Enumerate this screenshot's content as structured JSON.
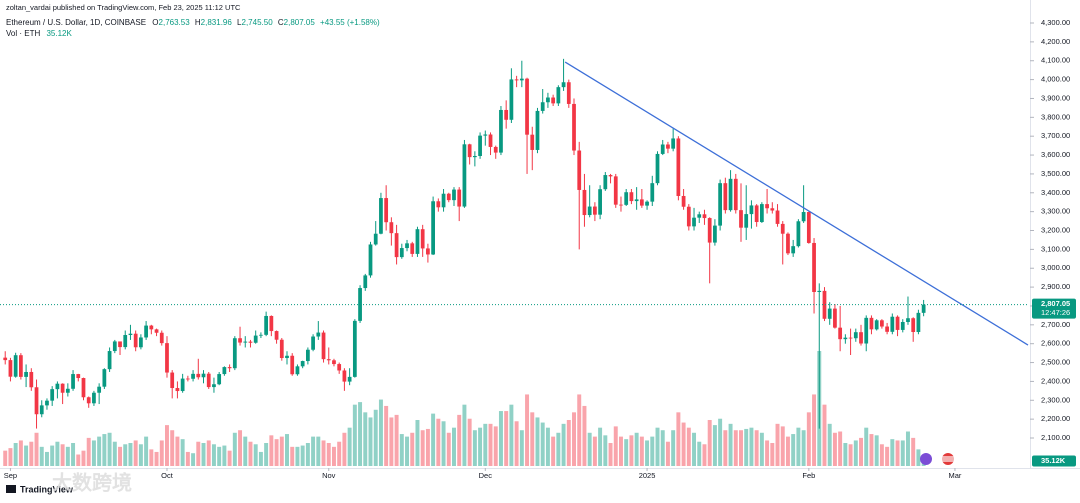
{
  "chart_data": {
    "type": "candlestick",
    "publisher": "zoltan_vardai published on TradingView.com, Feb 23, 2025 11:12 UTC",
    "title": "Ethereum / U.S. Dollar, 1D, COINBASE",
    "ohlc_legend": [
      {
        "key": "O",
        "text": "2,763.53"
      },
      {
        "key": "H",
        "text": "2,831.96"
      },
      {
        "key": "L",
        "text": "2,745.50"
      },
      {
        "key": "C",
        "text": "2,807.05"
      }
    ],
    "change": "+43.55 (+1.58%)",
    "volume_legend": "Vol · ETH",
    "volume_last_label": "35.12K",
    "last_price": {
      "value": 2807.05,
      "label": "2,807.05"
    },
    "countdown": "12:47:26",
    "logo": "TradingView",
    "watermark": "大数跨境",
    "up_color": "#089981",
    "down_color": "#f23645",
    "grid": false,
    "xlim": [
      -1,
      196
    ],
    "ylim": [
      1941,
      4422
    ],
    "xticks": [
      {
        "value": 1,
        "label": "Sep"
      },
      {
        "value": 31,
        "label": "Oct"
      },
      {
        "value": 62,
        "label": "Nov"
      },
      {
        "value": 92,
        "label": "Dec"
      },
      {
        "value": 123,
        "label": "2025"
      },
      {
        "value": 154,
        "label": "Feb"
      },
      {
        "value": 182,
        "label": "Mar"
      }
    ],
    "yticks": [
      {
        "value": 2100,
        "label": "2,100.00"
      },
      {
        "value": 2200,
        "label": "2,200.00"
      },
      {
        "value": 2300,
        "label": "2,300.00"
      },
      {
        "value": 2400,
        "label": "2,400.00"
      },
      {
        "value": 2500,
        "label": "2,500.00"
      },
      {
        "value": 2600,
        "label": "2,600.00"
      },
      {
        "value": 2700,
        "label": "2,700.00"
      },
      {
        "value": 2800,
        "label": "2,800.00"
      },
      {
        "value": 2900,
        "label": "2,900.00"
      },
      {
        "value": 3000,
        "label": "3,000.00"
      },
      {
        "value": 3100,
        "label": "3,100.00"
      },
      {
        "value": 3200,
        "label": "3,200.00"
      },
      {
        "value": 3300,
        "label": "3,300.00"
      },
      {
        "value": 3400,
        "label": "3,400.00"
      },
      {
        "value": 3500,
        "label": "3,500.00"
      },
      {
        "value": 3600,
        "label": "3,600.00"
      },
      {
        "value": 3700,
        "label": "3,700.00"
      },
      {
        "value": 3800,
        "label": "3,800.00"
      },
      {
        "value": 3900,
        "label": "3,900.00"
      },
      {
        "value": 4000,
        "label": "4,000.00"
      },
      {
        "value": 4100,
        "label": "4,100.00"
      },
      {
        "value": 4200,
        "label": "4,200.00"
      },
      {
        "value": 4300,
        "label": "4,300.00"
      }
    ],
    "trendline": {
      "x": [
        107.3,
        196
      ],
      "y": [
        4093,
        2593
      ],
      "color": "#3d6fd8"
    },
    "open": [
      2526,
      2513,
      2425,
      2539,
      2424,
      2450,
      2369,
      2226,
      2273,
      2298,
      2359,
      2388,
      2340,
      2361,
      2439,
      2418,
      2316,
      2284,
      2340,
      2372,
      2465,
      2561,
      2612,
      2582,
      2646,
      2653,
      2581,
      2633,
      2696,
      2676,
      2658,
      2603,
      2447,
      2365,
      2349,
      2415,
      2414,
      2440,
      2422,
      2441,
      2370,
      2385,
      2439,
      2476,
      2470,
      2629,
      2606,
      2611,
      2605,
      2643,
      2647,
      2747,
      2667,
      2621,
      2524,
      2536,
      2438,
      2480,
      2508,
      2568,
      2638,
      2659,
      2518,
      2512,
      2492,
      2458,
      2399,
      2424,
      2721,
      2895,
      2962,
      3126,
      3183,
      3372,
      3244,
      3186,
      3059,
      3107,
      3132,
      3076,
      3207,
      3105,
      3073,
      3355,
      3323,
      3395,
      3361,
      3417,
      3327,
      3657,
      3589,
      3595,
      3703,
      3709,
      3643,
      3613,
      3839,
      3787,
      4001,
      3996,
      4005,
      3708,
      3627,
      3834,
      3880,
      3905,
      3874,
      3960,
      3986,
      3871,
      3624,
      3415,
      3282,
      3327,
      3284,
      3419,
      3494,
      3487,
      3337,
      3336,
      3403,
      3356,
      3365,
      3332,
      3353,
      3451,
      3606,
      3656,
      3634,
      3688,
      3383,
      3326,
      3222,
      3268,
      3286,
      3266,
      3136,
      3226,
      3451,
      3308,
      3474,
      3308,
      3215,
      3287,
      3333,
      3245,
      3340,
      3318,
      3306,
      3235,
      3183,
      3079,
      3117,
      3249,
      3298,
      3134,
      2874,
      2880,
      2732,
      2786,
      2685,
      2624,
      2632,
      2629,
      2661,
      2601,
      2737,
      2676,
      2724,
      2691,
      2663,
      2743,
      2673,
      2715,
      2735,
      2662,
      2763.53
    ],
    "high": [
      2560,
      2525,
      2552,
      2550,
      2490,
      2470,
      2410,
      2300,
      2310,
      2375,
      2400,
      2390,
      2390,
      2460,
      2440,
      2420,
      2320,
      2350,
      2390,
      2470,
      2580,
      2620,
      2610,
      2670,
      2700,
      2670,
      2650,
      2720,
      2700,
      2680,
      2670,
      2640,
      2460,
      2400,
      2440,
      2430,
      2460,
      2520,
      2460,
      2450,
      2420,
      2450,
      2480,
      2490,
      2640,
      2690,
      2640,
      2620,
      2670,
      2660,
      2770,
      2750,
      2670,
      2630,
      2560,
      2550,
      2490,
      2510,
      2580,
      2650,
      2720,
      2670,
      2580,
      2520,
      2500,
      2470,
      2470,
      2730,
      2910,
      2970,
      3140,
      3250,
      3400,
      3440,
      3270,
      3230,
      3130,
      3150,
      3140,
      3220,
      3230,
      3130,
      3380,
      3370,
      3420,
      3400,
      3430,
      3430,
      3680,
      3660,
      3620,
      3720,
      3730,
      3720,
      3650,
      3860,
      3890,
      4060,
      4020,
      4100,
      4010,
      3750,
      3850,
      3950,
      3930,
      3920,
      3970,
      4110,
      4000,
      3900,
      3670,
      3500,
      3440,
      3350,
      3440,
      3510,
      3500,
      3500,
      3380,
      3420,
      3420,
      3430,
      3420,
      3360,
      3490,
      3620,
      3680,
      3670,
      3740,
      3700,
      3420,
      3340,
      3320,
      3300,
      3310,
      3270,
      3260,
      3470,
      3480,
      3520,
      3500,
      3450,
      3440,
      3360,
      3340,
      3350,
      3420,
      3350,
      3340,
      3250,
      3190,
      3150,
      3260,
      3440,
      3300,
      3160,
      2920,
      2900,
      2820,
      2810,
      2800,
      2650,
      2680,
      2680,
      2700,
      2750,
      2750,
      2730,
      2730,
      2710,
      2760,
      2750,
      2730,
      2850,
      2740,
      2780,
      2831.96
    ],
    "low": [
      2490,
      2400,
      2420,
      2410,
      2370,
      2350,
      2150,
      2210,
      2250,
      2270,
      2310,
      2280,
      2320,
      2350,
      2400,
      2300,
      2260,
      2270,
      2280,
      2360,
      2450,
      2550,
      2540,
      2570,
      2620,
      2560,
      2570,
      2620,
      2650,
      2640,
      2590,
      2420,
      2310,
      2310,
      2340,
      2400,
      2400,
      2410,
      2390,
      2360,
      2340,
      2380,
      2430,
      2450,
      2460,
      2590,
      2580,
      2580,
      2600,
      2630,
      2640,
      2640,
      2600,
      2510,
      2490,
      2430,
      2430,
      2470,
      2490,
      2560,
      2620,
      2500,
      2490,
      2480,
      2440,
      2350,
      2380,
      2420,
      2710,
      2880,
      2950,
      3120,
      3180,
      3200,
      3120,
      3020,
      3050,
      3090,
      3060,
      3060,
      3060,
      3030,
      3070,
      3300,
      3300,
      3350,
      3330,
      3250,
      3320,
      3550,
      3540,
      3580,
      3650,
      3600,
      3580,
      3600,
      3740,
      3770,
      3960,
      3960,
      3500,
      3520,
      3610,
      3820,
      3850,
      3860,
      3860,
      3940,
      3850,
      3600,
      3100,
      3220,
      3270,
      3250,
      3260,
      3410,
      3450,
      3320,
      3300,
      3330,
      3340,
      3310,
      3320,
      3310,
      3330,
      3440,
      3600,
      3610,
      3620,
      3360,
      3310,
      3200,
      3200,
      3240,
      3230,
      2920,
      3120,
      3200,
      3290,
      3300,
      3290,
      3140,
      3150,
      3210,
      3220,
      3240,
      3290,
      3290,
      3220,
      3020,
      3070,
      3060,
      3110,
      3240,
      3130,
      2760,
      2150,
      2720,
      2700,
      2680,
      2560,
      2600,
      2540,
      2610,
      2590,
      2560,
      2650,
      2670,
      2680,
      2650,
      2650,
      2640,
      2660,
      2700,
      2610,
      2650,
      2745.5
    ],
    "close": [
      2513,
      2425,
      2539,
      2424,
      2450,
      2369,
      2226,
      2273,
      2298,
      2359,
      2388,
      2340,
      2361,
      2439,
      2418,
      2316,
      2284,
      2340,
      2372,
      2465,
      2561,
      2612,
      2582,
      2646,
      2653,
      2581,
      2633,
      2696,
      2676,
      2658,
      2603,
      2447,
      2365,
      2349,
      2415,
      2414,
      2440,
      2422,
      2441,
      2370,
      2385,
      2439,
      2476,
      2470,
      2629,
      2606,
      2611,
      2605,
      2643,
      2647,
      2747,
      2667,
      2621,
      2524,
      2536,
      2438,
      2480,
      2508,
      2568,
      2638,
      2659,
      2518,
      2512,
      2492,
      2458,
      2399,
      2424,
      2721,
      2895,
      2962,
      3126,
      3183,
      3372,
      3244,
      3186,
      3059,
      3107,
      3132,
      3076,
      3207,
      3105,
      3073,
      3355,
      3323,
      3395,
      3361,
      3417,
      3327,
      3657,
      3589,
      3595,
      3703,
      3709,
      3643,
      3613,
      3839,
      3787,
      4001,
      3996,
      4005,
      3708,
      3627,
      3834,
      3880,
      3905,
      3874,
      3960,
      3986,
      3871,
      3624,
      3415,
      3282,
      3327,
      3284,
      3419,
      3494,
      3487,
      3337,
      3336,
      3403,
      3356,
      3365,
      3332,
      3353,
      3451,
      3606,
      3656,
      3634,
      3688,
      3383,
      3326,
      3222,
      3268,
      3286,
      3266,
      3136,
      3226,
      3451,
      3308,
      3474,
      3308,
      3215,
      3287,
      3333,
      3245,
      3340,
      3318,
      3306,
      3235,
      3183,
      3079,
      3117,
      3249,
      3298,
      3134,
      2874,
      2880,
      2732,
      2786,
      2685,
      2624,
      2632,
      2629,
      2661,
      2601,
      2737,
      2676,
      2724,
      2691,
      2663,
      2743,
      2673,
      2715,
      2735,
      2662,
      2763.53,
      2807.05
    ],
    "volume": [
      120,
      140,
      180,
      200,
      160,
      190,
      260,
      150,
      110,
      160,
      190,
      170,
      150,
      180,
      90,
      120,
      220,
      200,
      230,
      250,
      260,
      190,
      150,
      170,
      180,
      200,
      170,
      230,
      130,
      110,
      200,
      320,
      280,
      230,
      210,
      110,
      100,
      190,
      180,
      200,
      170,
      150,
      160,
      120,
      260,
      280,
      230,
      190,
      170,
      110,
      180,
      240,
      210,
      230,
      250,
      150,
      150,
      160,
      180,
      230,
      230,
      200,
      180,
      150,
      190,
      260,
      300,
      480,
      500,
      420,
      380,
      440,
      520,
      470,
      380,
      400,
      250,
      230,
      260,
      360,
      280,
      290,
      410,
      370,
      350,
      260,
      300,
      400,
      480,
      370,
      280,
      300,
      330,
      330,
      310,
      430,
      430,
      480,
      350,
      280,
      560,
      420,
      380,
      340,
      300,
      230,
      260,
      330,
      360,
      420,
      560,
      470,
      260,
      230,
      300,
      240,
      180,
      310,
      230,
      210,
      240,
      260,
      230,
      200,
      230,
      300,
      280,
      190,
      280,
      420,
      340,
      300,
      260,
      190,
      170,
      360,
      320,
      370,
      280,
      330,
      280,
      280,
      290,
      300,
      280,
      260,
      200,
      180,
      330,
      310,
      230,
      250,
      300,
      280,
      420,
      560,
      900,
      480,
      330,
      260,
      270,
      180,
      170,
      200,
      220,
      300,
      250,
      240,
      170,
      150,
      210,
      200,
      200,
      270,
      220,
      130,
      35.12
    ]
  }
}
